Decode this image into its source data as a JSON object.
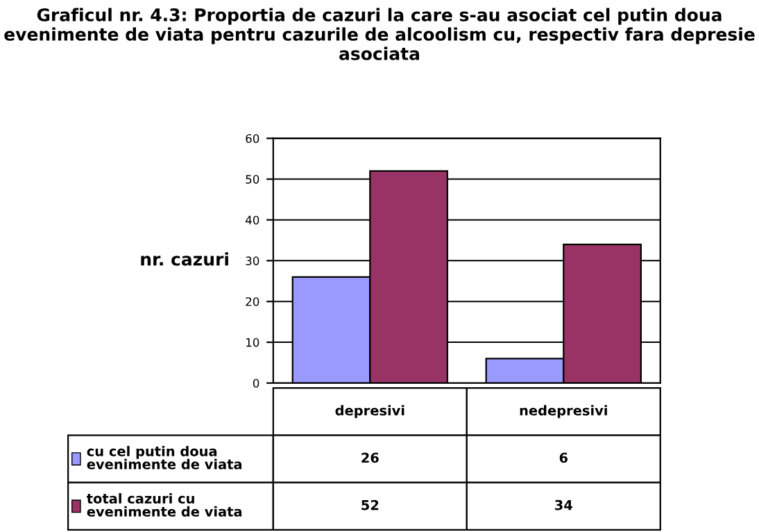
{
  "chart_data": {
    "type": "bar",
    "title": "Graficul nr. 4.3: Proportia de cazuri la care s-au asociat cel putin doua evenimente de viata pentru cazurile de alcoolism cu, respectiv fara depresie asociata",
    "ylabel": "nr. cazuri",
    "categories": [
      "depresivi",
      "nedepresivi"
    ],
    "series": [
      {
        "name": "cu cel putin doua evenimente de viata",
        "color": "#9999ff",
        "values": [
          26,
          6
        ]
      },
      {
        "name": "total cazuri cu evenimente de viata",
        "color": "#993366",
        "values": [
          52,
          34
        ]
      }
    ],
    "ylim": [
      0,
      60
    ],
    "yticks": [
      0,
      10,
      20,
      30,
      40,
      50,
      60
    ],
    "grid": "y",
    "data_labels": true,
    "legend": "bottom left"
  }
}
